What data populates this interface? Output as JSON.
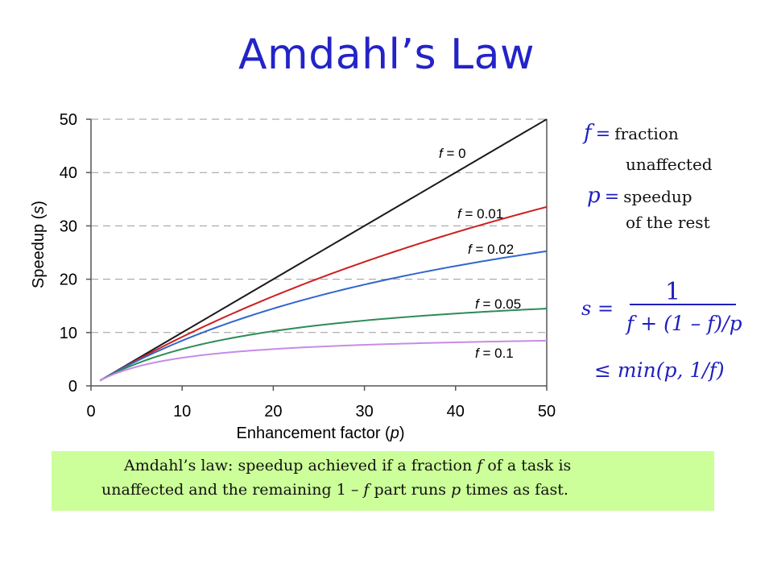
{
  "title": "Amdahl’s Law",
  "definitions": {
    "f_symbol": "f",
    "f_eq": "=",
    "f_text1": "fraction",
    "f_text2": "unaffected",
    "p_symbol": "p",
    "p_eq": "=",
    "p_text1": "speedup",
    "p_text2": "of the rest"
  },
  "formula": {
    "lhs": "s =",
    "numerator": "1",
    "denominator": "f + (1 – f)/p",
    "bound": "≤ min(p, 1/f)"
  },
  "caption": {
    "line1_a": "Amdahl’s law: speedup achieved if a fraction",
    "line1_f": "f",
    "line1_b": "of a task is",
    "line2_a": "unaffected and the remaining 1 –",
    "line2_f": "f",
    "line2_b": "part runs",
    "line2_p": "p",
    "line2_c": "times as fast."
  },
  "chart_data": {
    "type": "line",
    "x_label_text": "Enhancement factor",
    "x_label_var": "p",
    "y_label_text": "Speedup",
    "y_label_var": "s",
    "xlim": [
      0,
      50
    ],
    "ylim": [
      0,
      50
    ],
    "x_ticks": [
      0,
      10,
      20,
      30,
      40,
      50
    ],
    "y_ticks": [
      0,
      10,
      20,
      30,
      40,
      50
    ],
    "grid": "horizontal dashed",
    "series": [
      {
        "name": "f = 0",
        "f_value": "0",
        "f": 0,
        "color": "#1a1a1a"
      },
      {
        "name": "f = 0.01",
        "f_value": "0.01",
        "f": 0.01,
        "color": "#cc1f1f"
      },
      {
        "name": "f = 0.02",
        "f_value": "0.02",
        "f": 0.02,
        "color": "#3366cc"
      },
      {
        "name": "f = 0.05",
        "f_value": "0.05",
        "f": 0.05,
        "color": "#2e8b57"
      },
      {
        "name": "f = 0.1",
        "f_value": "0.1",
        "f": 0.1,
        "color": "#c78ce6"
      }
    ]
  }
}
